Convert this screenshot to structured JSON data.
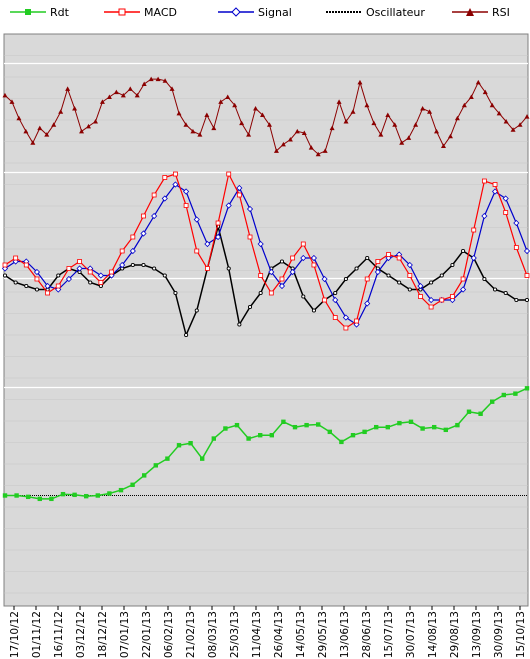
{
  "legend": {
    "rdt": "Rdt",
    "macd": "MACD",
    "signal": "Signal",
    "osc": "Oscillateur",
    "rsi": "RSI"
  },
  "colors": {
    "background": "#d9d9d9",
    "rdt": "#22cc22",
    "macd": "#ff0000",
    "signal": "#0000cc",
    "osc": "#000000",
    "rsi": "#8b0000",
    "grid": "#ffffff",
    "zero_line": "#000000"
  },
  "chart_data": {
    "type": "line",
    "x_labels": [
      "17/10/12",
      "01/11/12",
      "16/11/12",
      "03/12/12",
      "18/12/12",
      "07/01/13",
      "22/01/13",
      "06/02/13",
      "21/02/13",
      "08/03/13",
      "25/03/13",
      "11/04/13",
      "26/04/13",
      "14/05/13",
      "29/05/13",
      "13/06/13",
      "28/06/13",
      "15/07/13",
      "30/07/13",
      "14/08/13",
      "29/08/13",
      "13/09/13",
      "30/09/13",
      "15/10/13"
    ],
    "grid": true,
    "legend_position": "top",
    "panels": [
      {
        "name": "rsi",
        "series": [
          {
            "name": "RSI",
            "values": [
              62,
              58,
              48,
              40,
              33,
              42,
              38,
              44,
              52,
              66,
              54,
              40,
              43,
              46,
              58,
              61,
              64,
              62,
              66,
              62,
              69,
              72,
              72,
              71,
              66,
              51,
              44,
              40,
              38,
              50,
              42,
              58,
              61,
              56,
              45,
              38,
              54,
              50,
              44,
              28,
              32,
              35,
              40,
              39,
              30,
              26,
              28,
              42,
              58,
              46,
              52,
              70,
              56,
              45,
              38,
              50,
              44,
              33,
              36,
              44,
              54,
              52,
              40,
              31,
              37,
              48,
              56,
              61,
              70,
              64,
              56,
              51,
              46,
              41,
              44,
              49
            ]
          }
        ]
      },
      {
        "name": "macd",
        "series": [
          {
            "name": "MACD",
            "values": [
              0.4,
              0.6,
              0.4,
              0.0,
              -0.4,
              -0.2,
              0.3,
              0.5,
              0.2,
              -0.1,
              0.2,
              0.8,
              1.2,
              1.8,
              2.4,
              2.9,
              3.0,
              2.1,
              0.8,
              0.3,
              1.6,
              3.0,
              2.4,
              1.2,
              0.1,
              -0.4,
              0.0,
              0.6,
              1.0,
              0.4,
              -0.6,
              -1.1,
              -1.4,
              -1.2,
              0.0,
              0.5,
              0.7,
              0.6,
              0.1,
              -0.5,
              -0.8,
              -0.6,
              -0.5,
              0.0,
              1.4,
              2.8,
              2.7,
              1.9,
              0.9,
              0.1
            ]
          },
          {
            "name": "Signal",
            "values": [
              0.3,
              0.5,
              0.5,
              0.2,
              -0.2,
              -0.3,
              0.0,
              0.3,
              0.3,
              0.1,
              0.1,
              0.4,
              0.8,
              1.3,
              1.8,
              2.3,
              2.7,
              2.5,
              1.7,
              1.0,
              1.2,
              2.1,
              2.6,
              2.0,
              1.0,
              0.2,
              -0.2,
              0.2,
              0.6,
              0.6,
              0.0,
              -0.6,
              -1.1,
              -1.3,
              -0.7,
              0.2,
              0.6,
              0.7,
              0.4,
              -0.2,
              -0.6,
              -0.6,
              -0.6,
              -0.3,
              0.6,
              1.8,
              2.5,
              2.3,
              1.6,
              0.8
            ]
          },
          {
            "name": "Oscillateur",
            "values": [
              0.1,
              -0.1,
              -0.2,
              -0.3,
              -0.3,
              0.1,
              0.3,
              0.2,
              -0.1,
              -0.2,
              0.1,
              0.3,
              0.4,
              0.4,
              0.3,
              0.1,
              -0.4,
              -1.6,
              -0.9,
              0.3,
              1.5,
              0.3,
              -1.3,
              -0.8,
              -0.4,
              0.3,
              0.5,
              0.3,
              -0.5,
              -0.9,
              -0.6,
              -0.4,
              0.0,
              0.3,
              0.6,
              0.3,
              0.1,
              -0.1,
              -0.3,
              -0.3,
              -0.1,
              0.1,
              0.4,
              0.8,
              0.6,
              0.0,
              -0.3,
              -0.4,
              -0.6,
              -0.6
            ]
          }
        ]
      },
      {
        "name": "rdt",
        "series": [
          {
            "name": "Rdt",
            "values": [
              0.0,
              0.0,
              -0.2,
              -0.5,
              -0.5,
              0.2,
              0.1,
              -0.1,
              0.0,
              0.3,
              0.8,
              1.6,
              3.0,
              4.5,
              5.5,
              7.5,
              7.8,
              5.5,
              8.5,
              10.0,
              10.5,
              8.5,
              9.0,
              9.0,
              11.0,
              10.2,
              10.5,
              10.6,
              9.5,
              8.0,
              9.0,
              9.5,
              10.2,
              10.2,
              10.8,
              11.0,
              10.0,
              10.2,
              9.8,
              10.5,
              12.5,
              12.2,
              14.0,
              15.0,
              15.2,
              16.0
            ]
          }
        ]
      }
    ]
  }
}
